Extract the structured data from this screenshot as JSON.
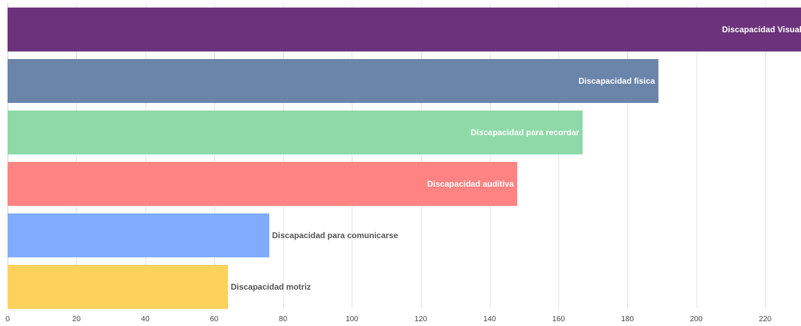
{
  "chart_data": {
    "type": "bar",
    "orientation": "horizontal",
    "title": "",
    "xlabel": "",
    "ylabel": "",
    "xlim": [
      0,
      230
    ],
    "x_ticks": [
      0,
      20,
      40,
      60,
      80,
      100,
      120,
      140,
      160,
      180,
      200,
      220
    ],
    "grid": true,
    "legend": "none",
    "categories": [
      "Discapacidad Visual",
      "Discapacidad física",
      "Discapacidad para recordar",
      "Discapacidad auditiva",
      "Discapacidad para comunicarse",
      "Discapacidad motriz"
    ],
    "values": [
      233,
      189,
      167,
      148,
      76,
      64
    ],
    "colors": [
      "#6c337c",
      "#6a84aa",
      "#8fd9a8",
      "#ff8382",
      "#80acff",
      "#fdd15b"
    ]
  }
}
